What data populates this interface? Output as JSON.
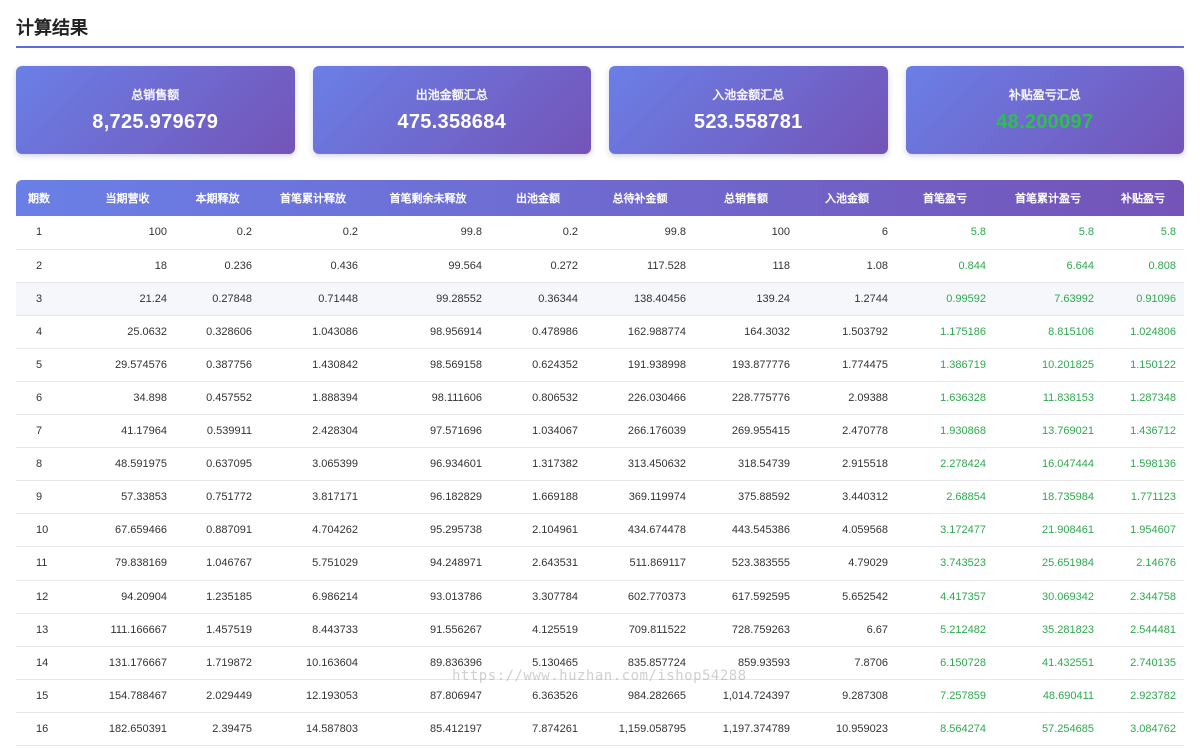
{
  "page": {
    "title": "计算结果"
  },
  "cards": [
    {
      "label": "总销售额",
      "value": "8,725.979679",
      "highlight": false
    },
    {
      "label": "出池金额汇总",
      "value": "475.358684",
      "highlight": false
    },
    {
      "label": "入池金额汇总",
      "value": "523.558781",
      "highlight": false
    },
    {
      "label": "补贴盈亏汇总",
      "value": "48.200097",
      "highlight": true
    }
  ],
  "table": {
    "columns": [
      "期数",
      "当期营收",
      "本期释放",
      "首笔累计释放",
      "首笔剩余未释放",
      "出池金额",
      "总待补金额",
      "总销售额",
      "入池金额",
      "首笔盈亏",
      "首笔累计盈亏",
      "补贴盈亏"
    ],
    "rows": [
      [
        "1",
        "100",
        "0.2",
        "0.2",
        "99.8",
        "0.2",
        "99.8",
        "100",
        "6",
        "5.8",
        "5.8",
        "5.8"
      ],
      [
        "2",
        "18",
        "0.236",
        "0.436",
        "99.564",
        "0.272",
        "117.528",
        "118",
        "1.08",
        "0.844",
        "6.644",
        "0.808"
      ],
      [
        "3",
        "21.24",
        "0.27848",
        "0.71448",
        "99.28552",
        "0.36344",
        "138.40456",
        "139.24",
        "1.2744",
        "0.99592",
        "7.63992",
        "0.91096"
      ],
      [
        "4",
        "25.0632",
        "0.328606",
        "1.043086",
        "98.956914",
        "0.478986",
        "162.988774",
        "164.3032",
        "1.503792",
        "1.175186",
        "8.815106",
        "1.024806"
      ],
      [
        "5",
        "29.574576",
        "0.387756",
        "1.430842",
        "98.569158",
        "0.624352",
        "191.938998",
        "193.877776",
        "1.774475",
        "1.386719",
        "10.201825",
        "1.150122"
      ],
      [
        "6",
        "34.898",
        "0.457552",
        "1.888394",
        "98.111606",
        "0.806532",
        "226.030466",
        "228.775776",
        "2.09388",
        "1.636328",
        "11.838153",
        "1.287348"
      ],
      [
        "7",
        "41.17964",
        "0.539911",
        "2.428304",
        "97.571696",
        "1.034067",
        "266.176039",
        "269.955415",
        "2.470778",
        "1.930868",
        "13.769021",
        "1.436712"
      ],
      [
        "8",
        "48.591975",
        "0.637095",
        "3.065399",
        "96.934601",
        "1.317382",
        "313.450632",
        "318.54739",
        "2.915518",
        "2.278424",
        "16.047444",
        "1.598136"
      ],
      [
        "9",
        "57.33853",
        "0.751772",
        "3.817171",
        "96.182829",
        "1.669188",
        "369.119974",
        "375.88592",
        "3.440312",
        "2.68854",
        "18.735984",
        "1.771123"
      ],
      [
        "10",
        "67.659466",
        "0.887091",
        "4.704262",
        "95.295738",
        "2.104961",
        "434.674478",
        "443.545386",
        "4.059568",
        "3.172477",
        "21.908461",
        "1.954607"
      ],
      [
        "11",
        "79.838169",
        "1.046767",
        "5.751029",
        "94.248971",
        "2.643531",
        "511.869117",
        "523.383555",
        "4.79029",
        "3.743523",
        "25.651984",
        "2.14676"
      ],
      [
        "12",
        "94.20904",
        "1.235185",
        "6.986214",
        "93.013786",
        "3.307784",
        "602.770373",
        "617.592595",
        "5.652542",
        "4.417357",
        "30.069342",
        "2.344758"
      ],
      [
        "13",
        "111.166667",
        "1.457519",
        "8.443733",
        "91.556267",
        "4.125519",
        "709.811522",
        "728.759263",
        "6.67",
        "5.212482",
        "35.281823",
        "2.544481"
      ],
      [
        "14",
        "131.176667",
        "1.719872",
        "10.163604",
        "89.836396",
        "5.130465",
        "835.857724",
        "859.93593",
        "7.8706",
        "6.150728",
        "41.432551",
        "2.740135"
      ],
      [
        "15",
        "154.788467",
        "2.029449",
        "12.193053",
        "87.806947",
        "6.363526",
        "984.282665",
        "1,014.724397",
        "9.287308",
        "7.257859",
        "48.690411",
        "2.923782"
      ],
      [
        "16",
        "182.650391",
        "2.39475",
        "14.587803",
        "85.412197",
        "7.874261",
        "1,159.058795",
        "1,197.374789",
        "10.959023",
        "8.564274",
        "57.254685",
        "3.084762"
      ]
    ]
  },
  "watermark": "https://www.huzhan.com/ishop54288"
}
